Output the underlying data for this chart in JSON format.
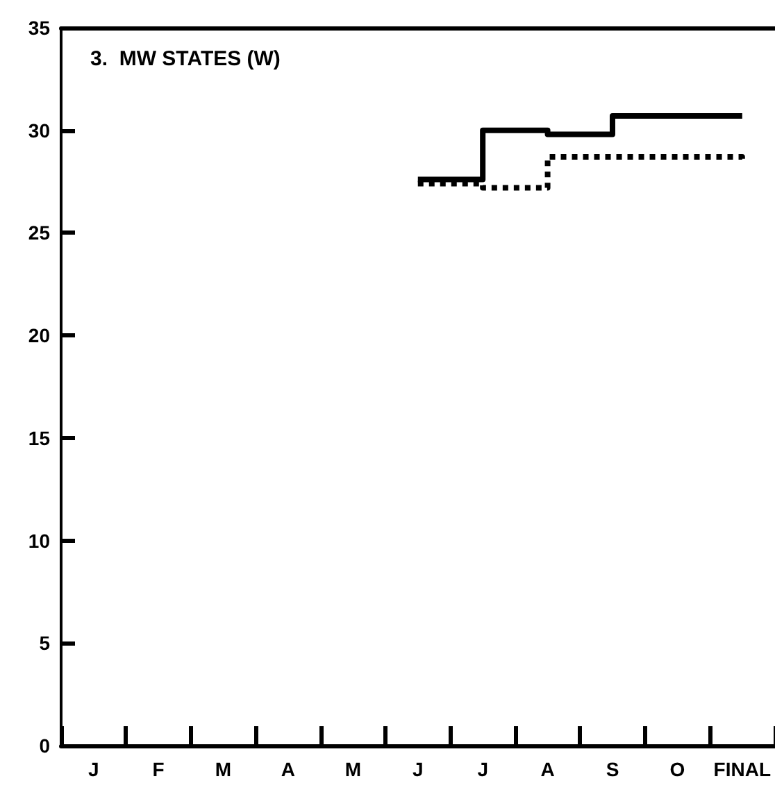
{
  "chart_data": {
    "type": "step",
    "title": "3.  MW STATES (W)",
    "categories": [
      "J",
      "F",
      "M",
      "A",
      "M",
      "J",
      "J",
      "A",
      "S",
      "O",
      "FINAL"
    ],
    "series": [
      {
        "color": "#000000",
        "line_style": "solid",
        "values": [
          null,
          null,
          null,
          null,
          null,
          27.6,
          30.0,
          29.8,
          30.7,
          30.7,
          30.7
        ]
      },
      {
        "color": "#000000",
        "line_style": "dotted",
        "values": [
          null,
          null,
          null,
          null,
          null,
          27.4,
          27.2,
          28.7,
          28.7,
          28.7,
          28.5
        ]
      }
    ],
    "ylim": [
      0,
      35
    ],
    "yticks": [
      0,
      5,
      10,
      15,
      20,
      25,
      30,
      35
    ],
    "grid": false,
    "marker": "none"
  }
}
